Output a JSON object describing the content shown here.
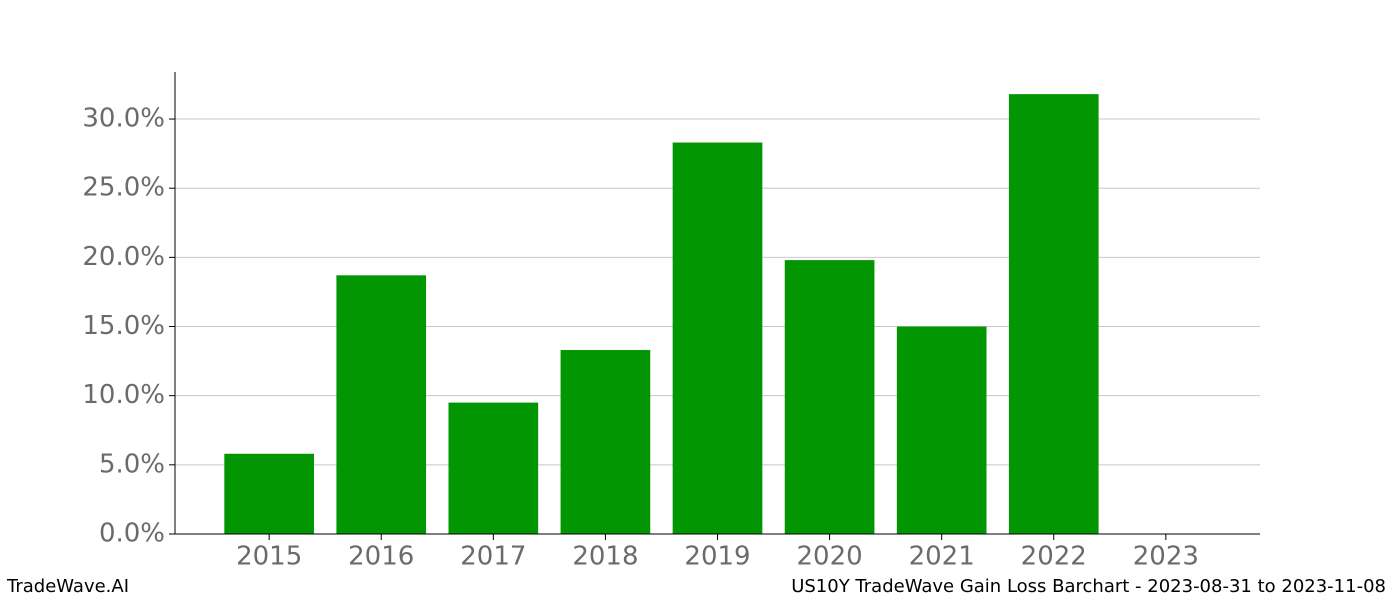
{
  "chart_data": {
    "type": "bar",
    "title": "US10Y TradeWave Gain Loss Barchart - 2023-08-31 to 2023-11-08",
    "source": "TradeWave.AI",
    "categories": [
      "2015",
      "2016",
      "2017",
      "2018",
      "2019",
      "2020",
      "2021",
      "2022",
      "2023"
    ],
    "values": [
      5.8,
      18.7,
      9.5,
      13.3,
      28.3,
      19.8,
      15.0,
      31.8,
      0
    ],
    "color": "#029602",
    "ylim": [
      0,
      33.4
    ],
    "yticks": [
      {
        "value": 0,
        "label": "0.0%"
      },
      {
        "value": 5,
        "label": "5.0%"
      },
      {
        "value": 10,
        "label": "10.0%"
      },
      {
        "value": 15,
        "label": "15.0%"
      },
      {
        "value": 20,
        "label": "20.0%"
      },
      {
        "value": 25,
        "label": "25.0%"
      },
      {
        "value": 30,
        "label": "30.0%"
      }
    ],
    "grid": true
  }
}
